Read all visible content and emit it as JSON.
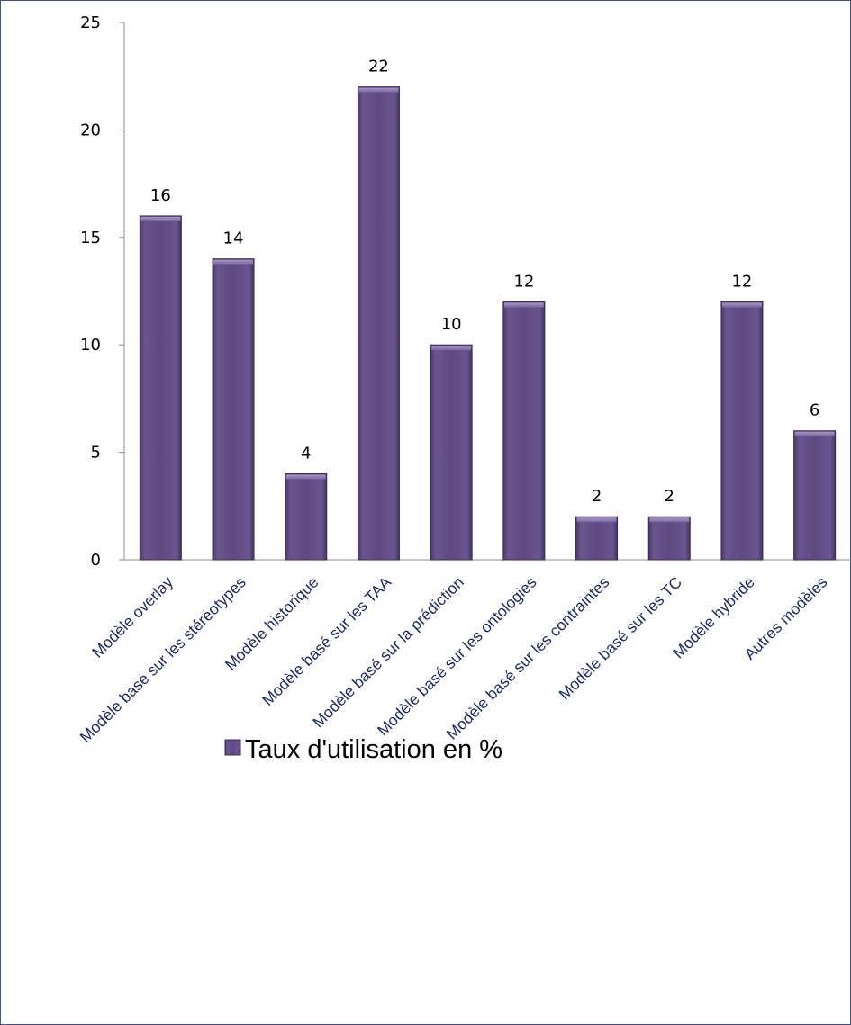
{
  "chart_data": {
    "type": "bar",
    "categories": [
      "Modèle overlay",
      "Modèle basé sur les stéréotypes",
      "Modèle historique",
      "Modèle basé sur les TAA",
      "Modèle basé sur la prédiction",
      "Modèle basé sur les ontologies",
      "Modèle basé sur les contraintes",
      "Modèle basé sur les TC",
      "Modèle hybride",
      "Autres modèles"
    ],
    "series": [
      {
        "name": "Taux d'utilisation en %",
        "values": [
          16,
          14,
          4,
          22,
          10,
          12,
          2,
          2,
          12,
          6
        ]
      }
    ],
    "ylim": [
      0,
      25
    ],
    "yticks": [
      "0",
      "5",
      "10",
      "15",
      "20",
      "25"
    ],
    "grid": false,
    "legend_position": "bottom",
    "bar_color": "#5e4a80"
  }
}
